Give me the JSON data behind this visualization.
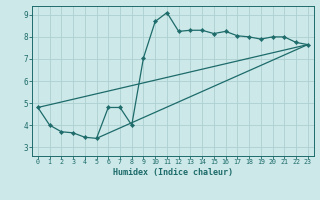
{
  "title": "",
  "xlabel": "Humidex (Indice chaleur)",
  "xlim": [
    -0.5,
    23.5
  ],
  "ylim": [
    2.6,
    9.4
  ],
  "xticks": [
    0,
    1,
    2,
    3,
    4,
    5,
    6,
    7,
    8,
    9,
    10,
    11,
    12,
    13,
    14,
    15,
    16,
    17,
    18,
    19,
    20,
    21,
    22,
    23
  ],
  "yticks": [
    3,
    4,
    5,
    6,
    7,
    8,
    9
  ],
  "bg_color": "#cce8e8",
  "line_color": "#1e6b6b",
  "grid_color": "#aed0d0",
  "line1_x": [
    0,
    1,
    2,
    3,
    4,
    5,
    6,
    7,
    8,
    9,
    10,
    11,
    12,
    13,
    14,
    15,
    16,
    17,
    18,
    19,
    20,
    21,
    22,
    23
  ],
  "line1_y": [
    4.8,
    4.0,
    3.7,
    3.65,
    3.45,
    3.4,
    4.8,
    4.8,
    4.0,
    7.05,
    8.7,
    9.1,
    8.25,
    8.3,
    8.3,
    8.15,
    8.25,
    8.05,
    8.0,
    7.9,
    8.0,
    8.0,
    7.75,
    7.65
  ],
  "line2_x": [
    0,
    23
  ],
  "line2_y": [
    4.8,
    7.65
  ],
  "line3_x": [
    5,
    23
  ],
  "line3_y": [
    3.4,
    7.65
  ]
}
